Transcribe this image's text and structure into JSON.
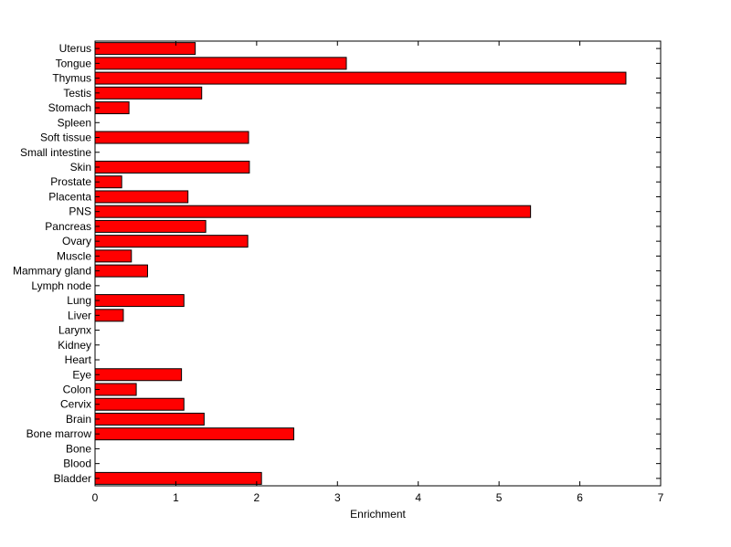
{
  "chart_data": {
    "type": "bar",
    "orientation": "horizontal",
    "title": "",
    "xlabel": "Enrichment",
    "ylabel": "",
    "xlim": [
      0,
      7
    ],
    "xticks": [
      0,
      1,
      2,
      3,
      4,
      5,
      6,
      7
    ],
    "grid": false,
    "legend": "none",
    "bar_color": "#ff0000",
    "edge_color": "#000000",
    "categories": [
      "Bladder",
      "Blood",
      "Bone",
      "Bone marrow",
      "Brain",
      "Cervix",
      "Colon",
      "Eye",
      "Heart",
      "Kidney",
      "Larynx",
      "Liver",
      "Lung",
      "Lymph node",
      "Mammary gland",
      "Muscle",
      "Ovary",
      "Pancreas",
      "PNS",
      "Placenta",
      "Prostate",
      "Skin",
      "Small intestine",
      "Soft tissue",
      "Spleen",
      "Stomach",
      "Testis",
      "Thymus",
      "Tongue",
      "Uterus"
    ],
    "values": [
      2.06,
      0,
      0,
      2.46,
      1.35,
      1.1,
      0.51,
      1.07,
      0,
      0,
      0,
      0.35,
      1.1,
      0,
      0.65,
      0.45,
      1.89,
      1.37,
      5.39,
      1.15,
      0.33,
      1.91,
      0,
      1.9,
      0,
      0.42,
      1.32,
      6.57,
      3.11,
      1.24
    ]
  }
}
